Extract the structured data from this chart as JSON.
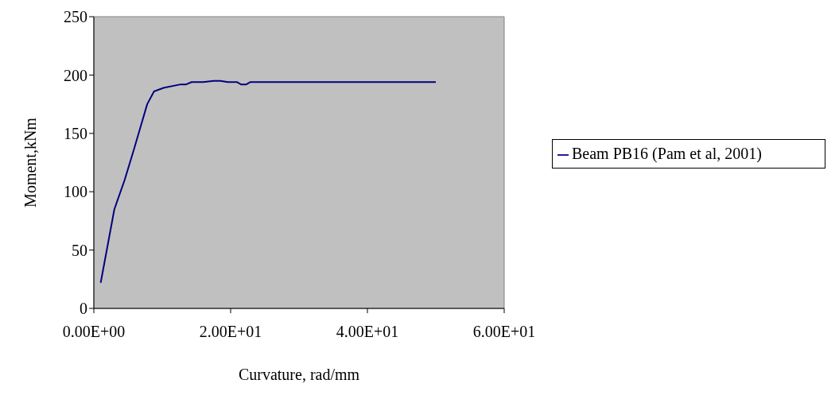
{
  "chart_data": {
    "type": "line",
    "xlabel": "Curvature, rad/mm",
    "ylabel": "Moment,kNm",
    "x": [
      1,
      3,
      4.5,
      5.8,
      6.8,
      7.8,
      8.8,
      10.2,
      12.7,
      13.5,
      14.3,
      16,
      17.5,
      18.5,
      19.6,
      20.9,
      21.5,
      22.3,
      22.9,
      30,
      40,
      50
    ],
    "series": [
      {
        "name": "Beam PB16 (Pam et al, 2001)",
        "color": "#000080",
        "values": [
          22,
          85,
          110,
          135,
          155,
          175,
          186,
          189,
          192,
          192,
          194,
          194,
          195,
          195,
          194,
          194,
          192,
          192,
          194,
          194,
          194,
          194
        ]
      }
    ],
    "xlim": [
      0,
      60
    ],
    "xticks": [
      {
        "value": 0,
        "label": "0.00E+00"
      },
      {
        "value": 20,
        "label": "2.00E+01"
      },
      {
        "value": 40,
        "label": "4.00E+01"
      },
      {
        "value": 60,
        "label": "6.00E+01"
      }
    ],
    "ylim": [
      0,
      250
    ],
    "yticks": [
      0,
      50,
      100,
      150,
      200,
      250
    ],
    "grid": false,
    "legend": "right",
    "marker": "none",
    "line_style": "solid"
  }
}
